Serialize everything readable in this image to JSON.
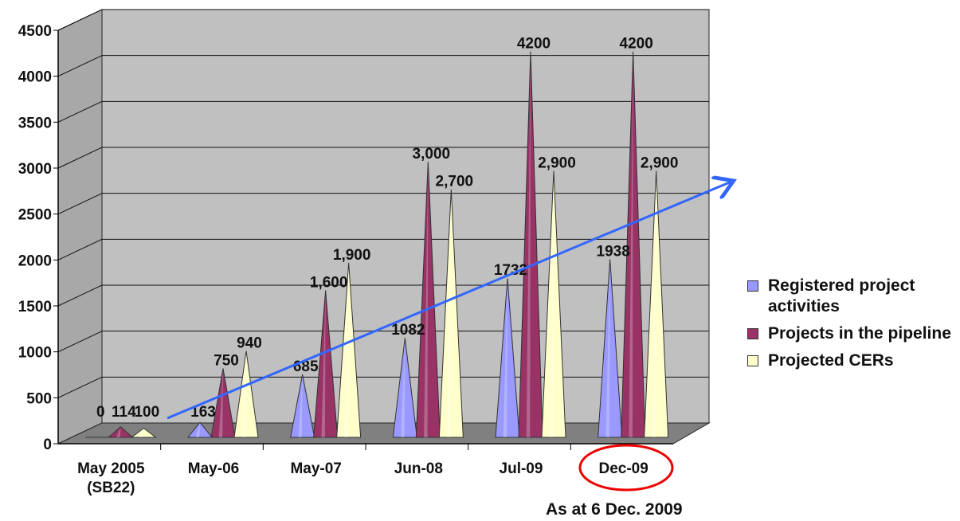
{
  "chart_data": {
    "type": "bar",
    "categories": [
      [
        "May 2005",
        "(SB22)"
      ],
      [
        "May-06"
      ],
      [
        "May-07"
      ],
      [
        "Jun-08"
      ],
      [
        "Jul-09"
      ],
      [
        "Dec-09"
      ]
    ],
    "series": [
      {
        "name": "Registered project activities",
        "color": "#9999ff",
        "values": [
          0,
          163,
          685,
          1082,
          1732,
          1938
        ],
        "labels": [
          "0",
          "163",
          "685",
          "1082",
          "1732",
          "1938"
        ]
      },
      {
        "name": "Projects in the pipeline",
        "color": "#993366",
        "values": [
          114,
          750,
          1600,
          3000,
          4200,
          4200
        ],
        "labels": [
          "114",
          "750",
          "1,600",
          "3,000",
          "4200",
          "4200"
        ]
      },
      {
        "name": "Projected CERs",
        "color": "#ffffcc",
        "values": [
          100,
          940,
          1900,
          2700,
          2900,
          2900
        ],
        "labels": [
          "100",
          "940",
          "1,900",
          "2,700",
          "2,900",
          "2,900"
        ]
      }
    ],
    "yticks": [
      0,
      500,
      1000,
      1500,
      2000,
      2500,
      3000,
      3500,
      4000,
      4500
    ],
    "ylim": [
      0,
      4500
    ],
    "grid": true,
    "legend_position": "right",
    "highlighted_category": "Dec-09",
    "trend_arrow": true
  },
  "footnote": "As at 6 Dec. 2009"
}
